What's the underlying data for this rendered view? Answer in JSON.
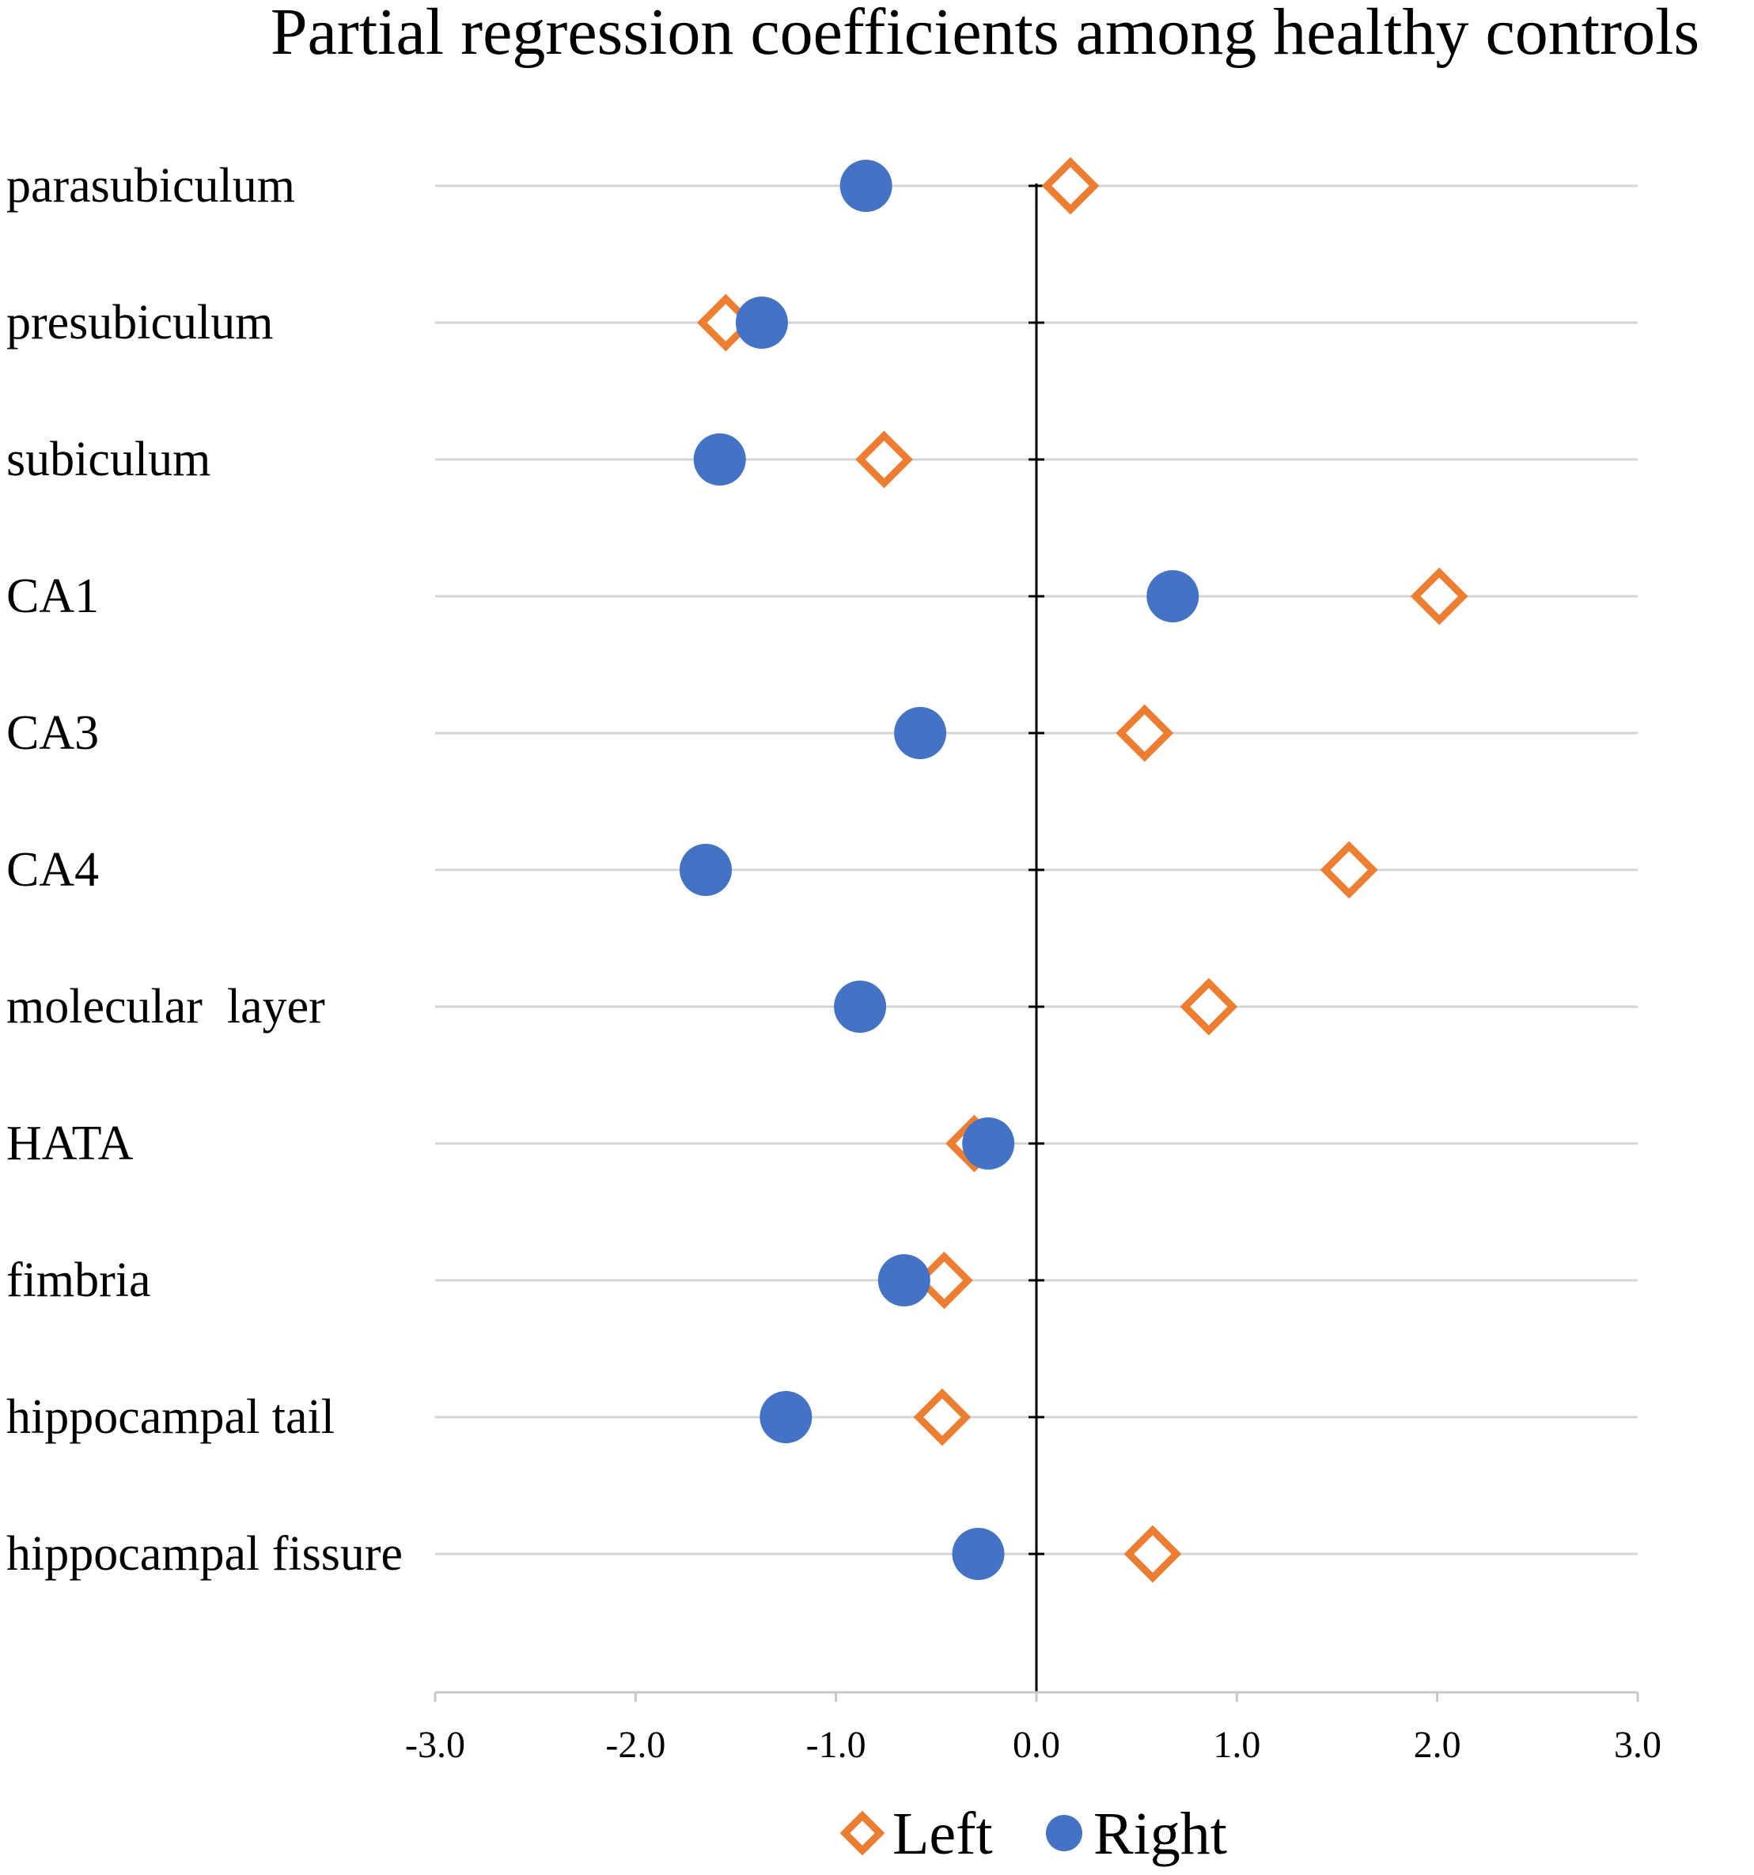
{
  "chart_data": {
    "type": "scatter",
    "title": "Partial regression coefficients among healthy controls",
    "xlabel": "",
    "ylabel": "",
    "xlim": [
      -3.0,
      3.0
    ],
    "x_ticks": [
      "-3.0",
      "-2.0",
      "-1.0",
      "0.0",
      "1.0",
      "2.0",
      "3.0"
    ],
    "x_tick_values": [
      -3,
      -2,
      -1,
      0,
      1,
      2,
      3
    ],
    "grid": true,
    "legend_position": "bottom-center",
    "categories": [
      "parasubiculum",
      "presubiculum",
      "subiculum",
      "CA1",
      "CA3",
      "CA4",
      "molecular  layer",
      "HATA",
      "fimbria",
      "hippocampal tail",
      "hippocampal fissure"
    ],
    "series": [
      {
        "name": "Left",
        "marker": "diamond-open",
        "color": "#ed7d31",
        "values": [
          0.17,
          -1.55,
          -0.76,
          2.01,
          0.54,
          1.56,
          0.86,
          -0.31,
          -0.46,
          -0.47,
          0.58
        ]
      },
      {
        "name": "Right",
        "marker": "circle-filled",
        "color": "#4472c4",
        "values": [
          -0.85,
          -1.37,
          -1.58,
          0.68,
          -0.58,
          -1.65,
          -0.88,
          -0.24,
          -0.66,
          -1.25,
          -0.29
        ]
      }
    ]
  }
}
